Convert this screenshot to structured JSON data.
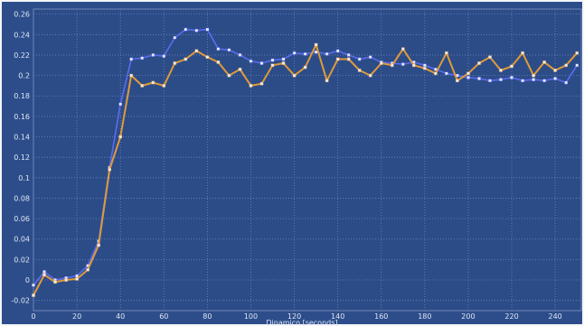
{
  "chart_data": {
    "type": "line",
    "title": "",
    "xlabel": "Dinamico [seconds]",
    "ylabel": "",
    "xlim": [
      0,
      252
    ],
    "ylim": [
      -0.03,
      0.265
    ],
    "x_ticks": [
      0,
      20,
      40,
      60,
      80,
      100,
      120,
      140,
      160,
      180,
      200,
      220,
      240
    ],
    "y_ticks": [
      -0.02,
      0,
      0.02,
      0.04,
      0.06,
      0.08,
      0.1,
      0.12,
      0.14,
      0.16,
      0.18,
      0.2,
      0.22,
      0.24,
      0.26
    ],
    "x_tick_labels": [
      "0",
      "20",
      "40",
      "60",
      "80",
      "100",
      "120",
      "140",
      "160",
      "180",
      "200",
      "220",
      "240"
    ],
    "y_tick_labels": [
      "-0.02",
      "0",
      "0.02",
      "0.04",
      "0.06",
      "0.08",
      "0.1",
      "0.12",
      "0.14",
      "0.16",
      "0.18",
      "0.2",
      "0.22",
      "0.24",
      "0.26"
    ],
    "grid": true,
    "series": [
      {
        "color": "#5b6cf0",
        "x": [
          0,
          5,
          10,
          15,
          20,
          25,
          30,
          35,
          40,
          45,
          50,
          55,
          60,
          65,
          70,
          75,
          80,
          85,
          90,
          95,
          100,
          105,
          110,
          115,
          120,
          125,
          130,
          135,
          140,
          145,
          150,
          155,
          160,
          165,
          170,
          175,
          180,
          185,
          190,
          195,
          200,
          205,
          210,
          215,
          220,
          225,
          230,
          235,
          240,
          245,
          250
        ],
        "y": [
          -0.005,
          0.008,
          0.0,
          0.002,
          0.004,
          0.014,
          0.038,
          0.11,
          0.172,
          0.216,
          0.217,
          0.22,
          0.219,
          0.237,
          0.245,
          0.244,
          0.245,
          0.226,
          0.225,
          0.22,
          0.214,
          0.212,
          0.215,
          0.216,
          0.222,
          0.221,
          0.223,
          0.221,
          0.224,
          0.22,
          0.216,
          0.218,
          0.213,
          0.212,
          0.211,
          0.213,
          0.21,
          0.206,
          0.202,
          0.2,
          0.198,
          0.197,
          0.195,
          0.196,
          0.198,
          0.195,
          0.196,
          0.195,
          0.197,
          0.193,
          0.21
        ]
      },
      {
        "color": "#e09a3a",
        "x": [
          0,
          5,
          10,
          15,
          20,
          25,
          30,
          35,
          40,
          45,
          50,
          55,
          60,
          65,
          70,
          75,
          80,
          85,
          90,
          95,
          100,
          105,
          110,
          115,
          120,
          125,
          130,
          135,
          140,
          145,
          150,
          155,
          160,
          165,
          170,
          175,
          180,
          185,
          190,
          195,
          200,
          205,
          210,
          215,
          220,
          225,
          230,
          235,
          240,
          245,
          250
        ],
        "y": [
          -0.015,
          0.005,
          -0.002,
          0.0,
          0.001,
          0.01,
          0.034,
          0.108,
          0.14,
          0.2,
          0.19,
          0.193,
          0.19,
          0.212,
          0.216,
          0.224,
          0.218,
          0.213,
          0.2,
          0.206,
          0.19,
          0.192,
          0.21,
          0.212,
          0.2,
          0.208,
          0.23,
          0.195,
          0.216,
          0.216,
          0.205,
          0.2,
          0.212,
          0.21,
          0.226,
          0.21,
          0.207,
          0.202,
          0.222,
          0.195,
          0.202,
          0.212,
          0.218,
          0.205,
          0.209,
          0.222,
          0.2,
          0.213,
          0.205,
          0.21,
          0.222
        ]
      }
    ]
  }
}
